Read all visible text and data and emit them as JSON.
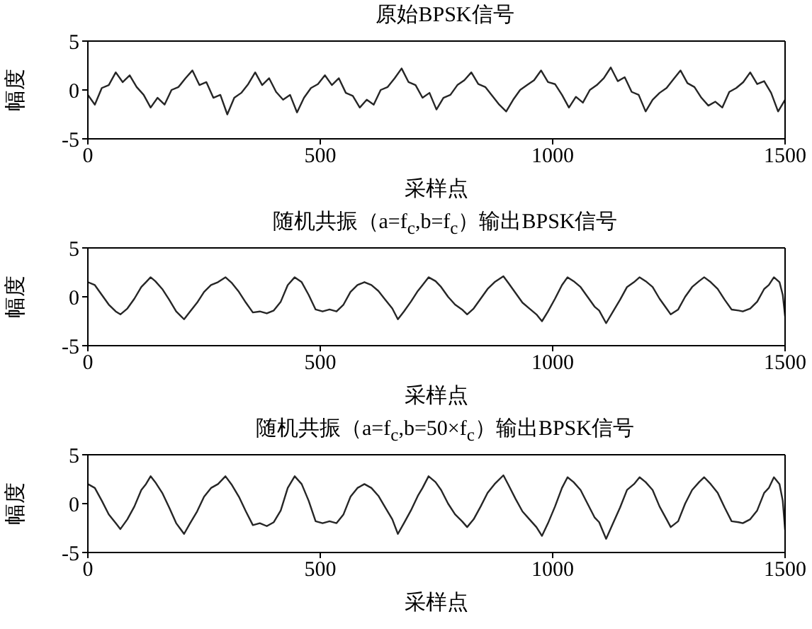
{
  "chart_data": [
    {
      "type": "line",
      "title": "原始BPSK信号",
      "xlabel": "采样点",
      "ylabel": "幅度",
      "xlim": [
        0,
        1500
      ],
      "xticks": [
        0,
        500,
        1000,
        1500
      ],
      "ylim": [
        -5,
        5
      ],
      "yticks": [
        -5,
        0,
        5
      ],
      "series": [
        {
          "color": "#262626",
          "x": [
            0,
            15,
            30,
            45,
            60,
            75,
            90,
            105,
            120,
            135,
            150,
            165,
            180,
            195,
            210,
            225,
            240,
            255,
            270,
            285,
            300,
            315,
            330,
            345,
            360,
            375,
            390,
            405,
            420,
            435,
            450,
            465,
            480,
            495,
            510,
            525,
            540,
            555,
            570,
            585,
            600,
            615,
            630,
            645,
            660,
            675,
            690,
            705,
            720,
            735,
            750,
            765,
            780,
            795,
            810,
            825,
            840,
            855,
            870,
            885,
            900,
            915,
            930,
            945,
            960,
            975,
            990,
            1005,
            1020,
            1035,
            1050,
            1065,
            1080,
            1095,
            1110,
            1125,
            1140,
            1155,
            1170,
            1185,
            1200,
            1215,
            1230,
            1245,
            1260,
            1275,
            1290,
            1305,
            1320,
            1335,
            1350,
            1365,
            1380,
            1395,
            1410,
            1425,
            1440,
            1455,
            1470,
            1485,
            1500
          ],
          "values": [
            -0.5,
            -1.5,
            0.2,
            0.5,
            1.8,
            0.8,
            1.5,
            0.3,
            -0.5,
            -1.8,
            -0.8,
            -1.5,
            0,
            0.3,
            1.2,
            2.0,
            0.5,
            0.8,
            -0.8,
            -0.5,
            -2.5,
            -0.8,
            -0.3,
            0.6,
            1.8,
            0.5,
            1.2,
            -0.2,
            -1.0,
            -0.5,
            -2.3,
            -0.8,
            0.2,
            0.6,
            1.5,
            0.5,
            1.2,
            -0.3,
            -0.6,
            -1.8,
            -1.0,
            -1.5,
            0,
            0.3,
            1.2,
            2.2,
            0.8,
            0.5,
            -0.8,
            -0.3,
            -2.0,
            -0.8,
            -0.5,
            0.5,
            1.0,
            1.8,
            0.6,
            0.3,
            -0.6,
            -1.5,
            -2.2,
            -1.0,
            0,
            0.5,
            1.0,
            2.0,
            0.8,
            0.6,
            -0.5,
            -1.8,
            -0.7,
            -1.3,
            0,
            0.5,
            1.2,
            2.3,
            0.9,
            1.3,
            -0.2,
            -0.5,
            -2.2,
            -1.0,
            -0.3,
            0.2,
            1.1,
            2.0,
            0.7,
            0.3,
            -0.8,
            -1.6,
            -1.2,
            -1.8,
            -0.2,
            0.2,
            0.8,
            1.8,
            0.6,
            0.9,
            -0.3,
            -2.2,
            -1.0
          ]
        }
      ]
    },
    {
      "type": "line",
      "title": "随机共振（a=f$_{c}$,b=f$_{c}$）输出BPSK信号",
      "xlabel": "采样点",
      "ylabel": "幅度",
      "xlim": [
        0,
        1500
      ],
      "xticks": [
        0,
        500,
        1000,
        1500
      ],
      "ylim": [
        -5,
        5
      ],
      "yticks": [
        -5,
        0,
        5
      ],
      "series": [
        {
          "color": "#262626",
          "x": [
            0,
            15,
            30,
            45,
            60,
            70,
            85,
            100,
            115,
            125,
            135,
            145,
            160,
            175,
            190,
            207,
            220,
            235,
            250,
            265,
            280,
            296,
            310,
            325,
            340,
            355,
            370,
            385,
            400,
            415,
            430,
            445,
            460,
            475,
            490,
            505,
            520,
            535,
            550,
            565,
            580,
            595,
            610,
            625,
            640,
            655,
            667,
            680,
            695,
            710,
            720,
            733,
            748,
            760,
            775,
            790,
            805,
            816,
            830,
            845,
            860,
            875,
            894,
            905,
            920,
            935,
            950,
            965,
            977,
            990,
            1005,
            1020,
            1032,
            1045,
            1060,
            1075,
            1090,
            1100,
            1115,
            1130,
            1145,
            1160,
            1175,
            1187,
            1200,
            1215,
            1230,
            1245,
            1254,
            1270,
            1285,
            1300,
            1315,
            1326,
            1340,
            1355,
            1370,
            1385,
            1400,
            1409,
            1425,
            1440,
            1455,
            1465,
            1476,
            1488,
            1495,
            1500
          ],
          "values": [
            1.5,
            1.2,
            0.2,
            -0.8,
            -1.5,
            -1.8,
            -1.2,
            -0.2,
            1.0,
            1.5,
            2.0,
            1.6,
            0.8,
            -0.3,
            -1.5,
            -2.3,
            -1.5,
            -0.6,
            0.5,
            1.2,
            1.5,
            2.0,
            1.4,
            0.5,
            -0.6,
            -1.6,
            -1.5,
            -1.7,
            -1.4,
            -0.5,
            1.2,
            2.0,
            1.5,
            0.2,
            -1.3,
            -1.5,
            -1.3,
            -1.5,
            -0.8,
            0.5,
            1.2,
            1.5,
            1.2,
            0.6,
            -0.3,
            -1.2,
            -2.3,
            -1.5,
            -0.5,
            0.6,
            1.2,
            2.0,
            1.6,
            1.0,
            0,
            -0.8,
            -1.3,
            -1.8,
            -1.2,
            -0.2,
            0.8,
            1.5,
            2.1,
            1.4,
            0.4,
            -0.6,
            -1.2,
            -1.8,
            -2.5,
            -1.5,
            -0.2,
            1.2,
            2.0,
            1.6,
            1.0,
            0,
            -1.0,
            -1.4,
            -2.7,
            -1.5,
            -0.3,
            1.0,
            1.5,
            2.0,
            1.6,
            1.0,
            -0.2,
            -1.2,
            -1.8,
            -1.3,
            0,
            1.0,
            1.6,
            2.0,
            1.5,
            0.8,
            -0.3,
            -1.3,
            -1.4,
            -1.5,
            -1.2,
            -0.5,
            0.8,
            1.2,
            2.0,
            1.5,
            0.2,
            -2.0
          ]
        }
      ]
    },
    {
      "type": "line",
      "title": "随机共振（a=f$_{c}$,b=50×f$_{c}$）输出BPSK信号",
      "xlabel": "采样点",
      "ylabel": "幅度",
      "xlim": [
        0,
        1500
      ],
      "xticks": [
        0,
        500,
        1000,
        1500
      ],
      "ylim": [
        -5,
        5
      ],
      "yticks": [
        -5,
        0,
        5
      ],
      "series": [
        {
          "color": "#262626",
          "x": [
            0,
            15,
            30,
            45,
            60,
            70,
            85,
            100,
            115,
            125,
            135,
            145,
            160,
            175,
            190,
            207,
            220,
            235,
            250,
            265,
            280,
            296,
            310,
            325,
            340,
            355,
            370,
            385,
            400,
            415,
            430,
            445,
            460,
            475,
            490,
            505,
            520,
            535,
            550,
            565,
            580,
            595,
            610,
            625,
            640,
            655,
            667,
            680,
            695,
            710,
            720,
            733,
            748,
            760,
            775,
            790,
            805,
            816,
            830,
            845,
            860,
            875,
            894,
            905,
            920,
            935,
            950,
            965,
            977,
            990,
            1005,
            1020,
            1032,
            1045,
            1060,
            1075,
            1090,
            1100,
            1115,
            1130,
            1145,
            1160,
            1175,
            1187,
            1200,
            1215,
            1230,
            1245,
            1254,
            1270,
            1285,
            1300,
            1315,
            1326,
            1340,
            1355,
            1370,
            1385,
            1400,
            1409,
            1425,
            1440,
            1455,
            1465,
            1476,
            1488,
            1495,
            1500
          ],
          "values": [
            2.0,
            1.6,
            0.3,
            -1.1,
            -2.0,
            -2.6,
            -1.6,
            -0.3,
            1.4,
            2.0,
            2.8,
            2.2,
            1.1,
            -0.4,
            -2.0,
            -3.1,
            -2.0,
            -0.8,
            0.7,
            1.6,
            2.0,
            2.8,
            1.9,
            0.7,
            -0.8,
            -2.2,
            -2.0,
            -2.3,
            -1.9,
            -0.7,
            1.6,
            2.8,
            2.0,
            0.3,
            -1.8,
            -2.0,
            -1.8,
            -2.0,
            -1.1,
            0.7,
            1.6,
            2.0,
            1.6,
            0.8,
            -0.4,
            -1.6,
            -3.1,
            -2.0,
            -0.7,
            0.8,
            1.6,
            2.8,
            2.2,
            1.4,
            0,
            -1.1,
            -1.8,
            -2.4,
            -1.6,
            -0.3,
            1.1,
            2.0,
            2.9,
            1.9,
            0.5,
            -0.8,
            -1.6,
            -2.4,
            -3.3,
            -2.0,
            -0.3,
            1.6,
            2.7,
            2.2,
            1.4,
            0,
            -1.4,
            -1.9,
            -3.6,
            -2.0,
            -0.4,
            1.4,
            2.0,
            2.7,
            2.2,
            1.4,
            -0.3,
            -1.6,
            -2.4,
            -1.8,
            0,
            1.4,
            2.2,
            2.7,
            2.0,
            1.1,
            -0.4,
            -1.8,
            -1.9,
            -2.0,
            -1.6,
            -0.7,
            1.1,
            1.6,
            2.7,
            2.0,
            0.3,
            -2.7
          ]
        }
      ]
    }
  ]
}
